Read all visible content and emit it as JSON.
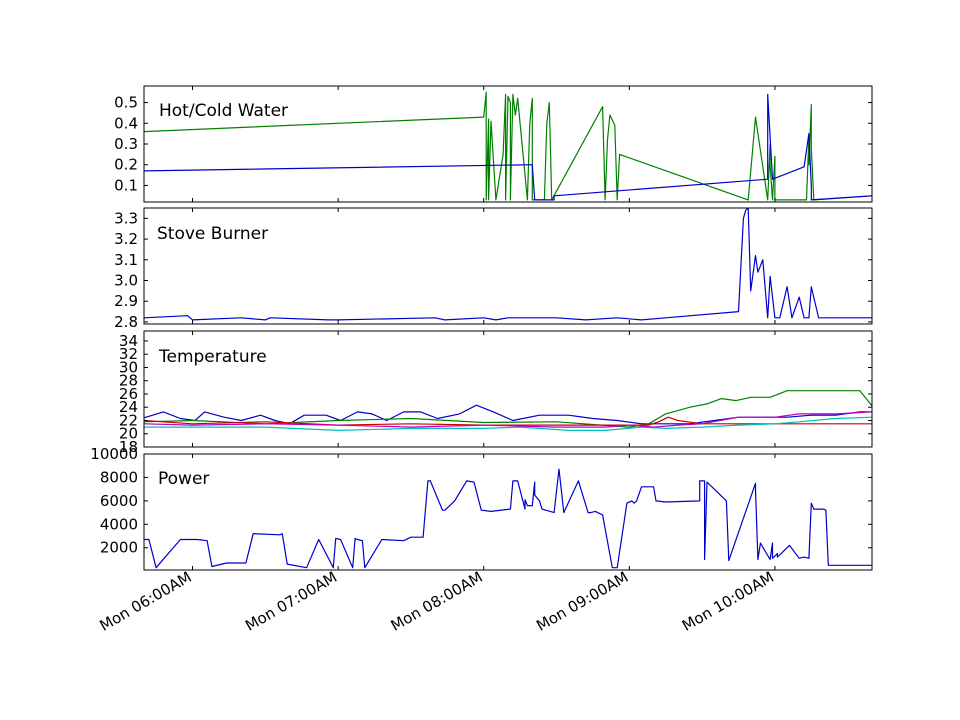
{
  "chart_data": [
    {
      "type": "line",
      "title": "Hot/Cold Water",
      "xlim": [
        "05:40",
        "10:40"
      ],
      "ylim": [
        0.02,
        0.58
      ],
      "yticks": [
        "0.1",
        "0.2",
        "0.3",
        "0.4",
        "0.5"
      ],
      "grid": false,
      "series": [
        {
          "color": "#008000",
          "x": [
            "05:40",
            "08:00",
            "08:01",
            "08:01",
            "08:02",
            "08:02",
            "08:03",
            "08:05",
            "08:08",
            "08:09",
            "08:09",
            "08:10",
            "08:11",
            "08:11",
            "08:12",
            "08:13",
            "08:14",
            "08:18",
            "08:19",
            "08:20",
            "08:20",
            "08:25",
            "08:26",
            "08:27",
            "08:28",
            "08:49",
            "08:50",
            "08:50",
            "08:51",
            "08:52",
            "08:54",
            "08:55",
            "08:56",
            "09:49",
            "09:52",
            "09:57",
            "09:58",
            "09:58",
            "09:59",
            "10:00",
            "10:00",
            "10:13",
            "10:14",
            "10:14",
            "10:15",
            "10:15",
            "10:16",
            "10:40"
          ],
          "y": [
            0.36,
            0.43,
            0.55,
            0.03,
            0.42,
            0.03,
            0.41,
            0.03,
            0.25,
            0.54,
            0.03,
            0.53,
            0.5,
            0.03,
            0.54,
            0.44,
            0.52,
            0.03,
            0.4,
            0.52,
            0.03,
            0.03,
            0.4,
            0.5,
            0.03,
            0.48,
            0.03,
            0.03,
            0.32,
            0.44,
            0.39,
            0.03,
            0.25,
            0.03,
            0.43,
            0.03,
            0.3,
            0.2,
            0.03,
            0.24,
            0.03,
            0.03,
            0.33,
            0.2,
            0.49,
            0.28,
            0.03,
            0.05
          ]
        },
        {
          "color": "#0000cc",
          "x": [
            "05:40",
            "08:20",
            "08:21",
            "08:29",
            "08:29",
            "09:57",
            "09:57",
            "09:59",
            "10:12",
            "10:14",
            "10:15",
            "10:15",
            "10:40"
          ],
          "y": [
            0.17,
            0.2,
            0.03,
            0.03,
            0.05,
            0.13,
            0.54,
            0.13,
            0.19,
            0.35,
            0.1,
            0.03,
            0.05
          ]
        }
      ]
    },
    {
      "type": "line",
      "title": "Stove Burner",
      "xlim": [
        "05:40",
        "10:40"
      ],
      "ylim": [
        2.79,
        3.35
      ],
      "yticks": [
        "2.8",
        "2.9",
        "3.0",
        "3.1",
        "3.2",
        "3.3"
      ],
      "grid": false,
      "series": [
        {
          "color": "#0000cc",
          "x": [
            "05:40",
            "05:58",
            "06:00",
            "06:20",
            "06:30",
            "06:32",
            "06:56",
            "07:00",
            "07:40",
            "07:44",
            "08:00",
            "08:05",
            "08:10",
            "08:30",
            "08:42",
            "08:55",
            "09:05",
            "09:15",
            "09:45",
            "09:47",
            "09:48",
            "09:49",
            "09:50",
            "09:52",
            "09:53",
            "09:55",
            "09:57",
            "09:58",
            "10:00",
            "10:02",
            "10:05",
            "10:07",
            "10:10",
            "10:12",
            "10:14",
            "10:15",
            "10:18",
            "10:40"
          ],
          "y": [
            2.82,
            2.83,
            2.81,
            2.82,
            2.81,
            2.82,
            2.81,
            2.81,
            2.82,
            2.81,
            2.82,
            2.81,
            2.82,
            2.82,
            2.81,
            2.82,
            2.81,
            2.82,
            2.85,
            3.3,
            3.34,
            3.35,
            2.95,
            3.12,
            3.04,
            3.1,
            2.82,
            3.02,
            2.82,
            2.82,
            2.97,
            2.82,
            2.92,
            2.82,
            2.82,
            2.97,
            2.82,
            2.82
          ]
        }
      ]
    },
    {
      "type": "line",
      "title": "Temperature",
      "xlim": [
        "05:40",
        "10:40"
      ],
      "ylim": [
        18,
        35.5
      ],
      "yticks": [
        "18",
        "20",
        "22",
        "24",
        "26",
        "28",
        "30",
        "32",
        "34"
      ],
      "grid": false,
      "series": [
        {
          "color": "#0000cc",
          "x": [
            "05:40",
            "05:48",
            "05:55",
            "06:01",
            "06:05",
            "06:13",
            "06:20",
            "06:28",
            "06:34",
            "06:40",
            "06:46",
            "06:55",
            "07:01",
            "07:08",
            "07:14",
            "07:20",
            "07:27",
            "07:34",
            "07:41",
            "07:50",
            "07:57",
            "08:04",
            "08:12",
            "08:23",
            "08:35",
            "08:45",
            "08:55",
            "09:05",
            "09:15",
            "09:25",
            "09:35",
            "09:45",
            "09:55",
            "10:05",
            "10:15",
            "10:25",
            "10:35",
            "10:40"
          ],
          "y": [
            22.4,
            23.3,
            22.3,
            22.0,
            23.3,
            22.5,
            22.0,
            22.8,
            22.0,
            21.5,
            22.8,
            22.8,
            22.0,
            23.3,
            23.0,
            22.0,
            23.3,
            23.3,
            22.3,
            23.0,
            24.3,
            23.3,
            22.0,
            22.8,
            22.8,
            22.3,
            22.0,
            21.5,
            21.5,
            21.5,
            22.0,
            22.5,
            22.5,
            22.5,
            22.8,
            22.8,
            23.3,
            23.3
          ]
        },
        {
          "color": "#008000",
          "x": [
            "05:40",
            "06:00",
            "06:30",
            "07:00",
            "07:30",
            "08:00",
            "08:30",
            "09:00",
            "09:08",
            "09:15",
            "09:25",
            "09:32",
            "09:38",
            "09:44",
            "09:50",
            "09:58",
            "10:05",
            "10:15",
            "10:25",
            "10:35",
            "10:40"
          ],
          "y": [
            21.8,
            22.0,
            21.5,
            22.0,
            22.3,
            21.7,
            21.8,
            21.0,
            21.5,
            23.0,
            24.0,
            24.5,
            25.3,
            25.0,
            25.5,
            25.5,
            26.5,
            26.5,
            26.5,
            26.5,
            24.2
          ]
        },
        {
          "color": "#cc0000",
          "x": [
            "05:40",
            "06:00",
            "06:30",
            "07:00",
            "07:30",
            "08:00",
            "08:30",
            "09:00",
            "09:08",
            "09:12",
            "09:16",
            "09:20",
            "09:30",
            "10:00",
            "10:40"
          ],
          "y": [
            22.0,
            21.5,
            21.8,
            21.3,
            21.5,
            21.3,
            21.3,
            21.3,
            21.3,
            21.8,
            22.5,
            22.0,
            21.5,
            21.5,
            21.5
          ]
        },
        {
          "color": "#00bfbf",
          "x": [
            "05:40",
            "06:00",
            "06:30",
            "07:00",
            "07:30",
            "08:00",
            "08:15",
            "08:35",
            "08:50",
            "09:05",
            "09:15",
            "09:30",
            "09:45",
            "10:00",
            "10:10",
            "10:25",
            "10:40"
          ],
          "y": [
            21.0,
            21.0,
            21.0,
            20.5,
            20.8,
            20.8,
            21.0,
            20.5,
            20.5,
            21.0,
            20.8,
            21.0,
            21.3,
            21.5,
            21.8,
            22.3,
            22.5
          ]
        },
        {
          "color": "#bf00bf",
          "x": [
            "05:40",
            "06:00",
            "06:30",
            "07:00",
            "07:30",
            "08:00",
            "08:30",
            "08:50",
            "09:00",
            "09:10",
            "09:20",
            "09:30",
            "09:45",
            "10:00",
            "10:10",
            "10:25",
            "10:40"
          ],
          "y": [
            21.5,
            21.3,
            21.5,
            21.3,
            21.0,
            21.3,
            21.0,
            21.0,
            21.3,
            21.0,
            21.3,
            21.5,
            22.5,
            22.5,
            23.0,
            23.0,
            23.3
          ]
        }
      ]
    },
    {
      "type": "line",
      "title": "Power",
      "xlim": [
        "05:40",
        "10:40"
      ],
      "ylim": [
        100,
        10000
      ],
      "yticks": [
        "2000",
        "4000",
        "6000",
        "8000",
        "10000"
      ],
      "xticks": [
        "Mon 06:00AM",
        "Mon 07:00AM",
        "Mon 08:00AM",
        "Mon 09:00AM",
        "Mon 10:00AM"
      ],
      "grid": false,
      "series": [
        {
          "color": "#0000cc",
          "x": [
            "05:40",
            "05:42",
            "05:45",
            "05:55",
            "06:02",
            "06:06",
            "06:08",
            "06:14",
            "06:22",
            "06:25",
            "06:36",
            "06:37",
            "06:39",
            "06:47",
            "06:52",
            "06:58",
            "06:59",
            "07:01",
            "07:06",
            "07:07",
            "07:08",
            "07:10",
            "07:11",
            "07:11",
            "07:18",
            "07:27",
            "07:30",
            "07:35",
            "07:37",
            "07:38",
            "07:43",
            "07:44",
            "07:48",
            "07:53",
            "07:56",
            "07:59",
            "08:03",
            "08:11",
            "08:12",
            "08:14",
            "08:17",
            "08:17",
            "08:18",
            "08:20",
            "08:21",
            "08:21",
            "08:23",
            "08:24",
            "08:29",
            "08:31",
            "08:33",
            "08:39",
            "08:43",
            "08:44",
            "08:46",
            "08:49",
            "08:53",
            "08:55",
            "08:59",
            "09:01",
            "09:02",
            "09:03",
            "09:05",
            "09:10",
            "09:11",
            "09:15",
            "09:29",
            "09:29",
            "09:31",
            "09:31",
            "09:32",
            "09:40",
            "09:41",
            "09:52",
            "09:52",
            "09:53",
            "09:54",
            "09:58",
            "09:59",
            "09:59",
            "10:01",
            "10:01",
            "10:06",
            "10:10",
            "10:12",
            "10:14",
            "10:15",
            "10:16",
            "10:20",
            "10:21",
            "10:22",
            "10:24",
            "10:25",
            "10:40"
          ],
          "y": [
            2700,
            2700,
            300,
            2700,
            2700,
            2600,
            400,
            700,
            700,
            3200,
            3100,
            3200,
            600,
            300,
            2700,
            300,
            2800,
            2700,
            300,
            2800,
            2700,
            2600,
            300,
            300,
            2700,
            2600,
            2900,
            2900,
            7700,
            7700,
            5200,
            5200,
            6000,
            7700,
            7600,
            5200,
            5100,
            5300,
            7700,
            7700,
            5300,
            6100,
            5600,
            5600,
            7600,
            6500,
            6000,
            5300,
            5000,
            8700,
            5000,
            7700,
            5000,
            5000,
            5100,
            4800,
            300,
            300,
            5800,
            6000,
            5800,
            6000,
            7200,
            7200,
            6000,
            5900,
            6000,
            7700,
            7700,
            1000,
            7600,
            6000,
            900,
            7500,
            7000,
            1000,
            2400,
            1000,
            2400,
            1100,
            1500,
            1200,
            2200,
            1100,
            1200,
            1100,
            5800,
            5300,
            5300,
            5200,
            500,
            500,
            500,
            500
          ]
        }
      ]
    }
  ]
}
